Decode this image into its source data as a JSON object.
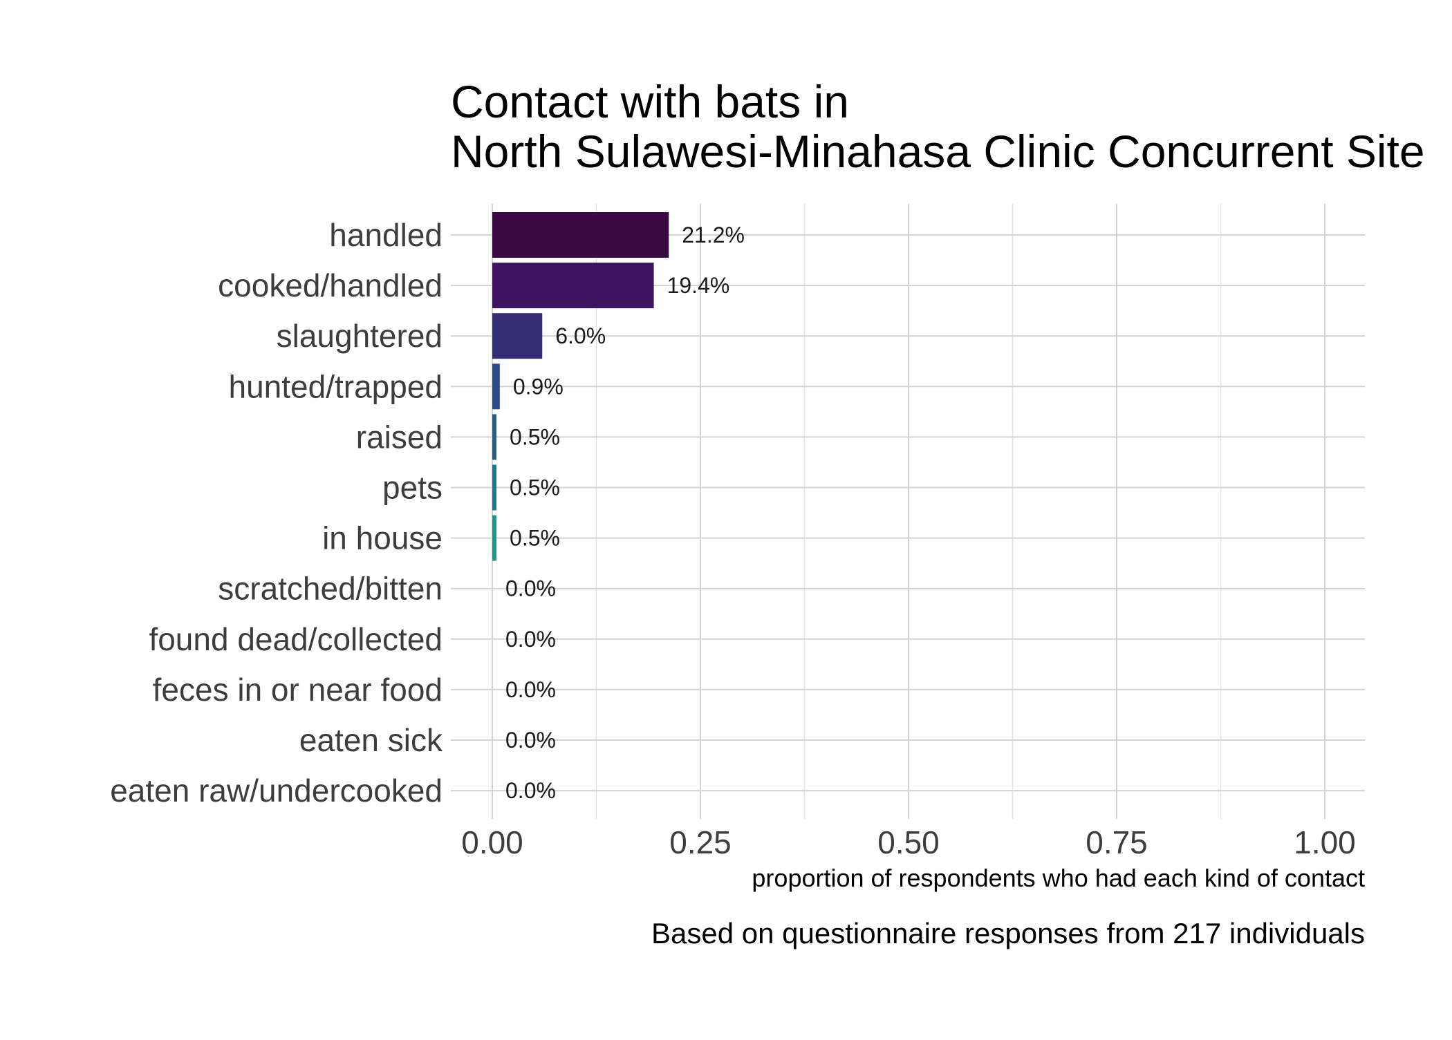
{
  "chart_data": {
    "type": "bar",
    "orientation": "horizontal",
    "title_lines": [
      "Contact with bats in",
      "North Sulawesi-Minahasa Clinic Concurrent Site"
    ],
    "xlabel": "proportion of respondents who had each kind of contact",
    "ylabel": "",
    "caption": "Based on questionnaire responses from 217 individuals",
    "xlim": [
      0,
      1
    ],
    "x_ticks": [
      0,
      0.25,
      0.5,
      0.75,
      1.0
    ],
    "x_tick_labels": [
      "0.00",
      "0.25",
      "0.50",
      "0.75",
      "1.00"
    ],
    "grid": true,
    "legend": "none",
    "categories": [
      "handled",
      "cooked/handled",
      "slaughtered",
      "hunted/trapped",
      "raised",
      "pets",
      "in house",
      "scratched/bitten",
      "found dead/collected",
      "feces in or near food",
      "eaten sick",
      "eaten raw/undercooked"
    ],
    "values": [
      0.212,
      0.194,
      0.06,
      0.009,
      0.005,
      0.005,
      0.005,
      0,
      0,
      0,
      0,
      0
    ],
    "value_labels": [
      "21.2%",
      "19.4%",
      "6.0%",
      "0.9%",
      "0.5%",
      "0.5%",
      "0.5%",
      "0.0%",
      "0.0%",
      "0.0%",
      "0.0%",
      "0.0%"
    ],
    "colors": [
      "#3a0a45",
      "#3e1461",
      "#342d74",
      "#2f4a82",
      "#285f8a",
      "#23788c",
      "#1f9885",
      "#2db27d",
      "#4ec36b",
      "#7ed34f",
      "#b5de2b",
      "#fde725"
    ]
  }
}
